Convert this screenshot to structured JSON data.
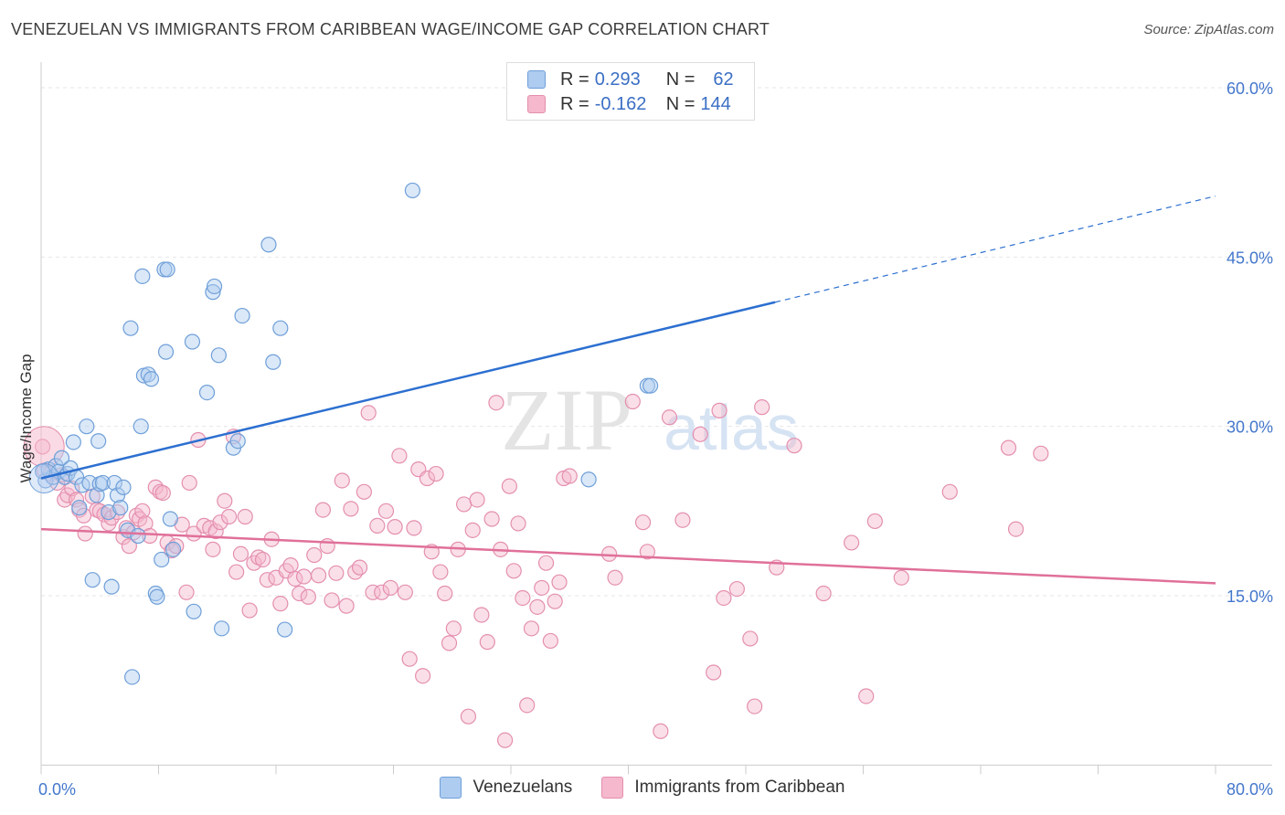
{
  "title": "VENEZUELAN VS IMMIGRANTS FROM CARIBBEAN WAGE/INCOME GAP CORRELATION CHART",
  "source": "Source: ZipAtlas.com",
  "watermark": {
    "zip": "ZIP",
    "atlas": "atlas"
  },
  "legend": {
    "r_label": "R =",
    "n_label": "N =",
    "rows": [
      {
        "r": "0.293",
        "n": "62"
      },
      {
        "r": "-0.162",
        "n": "144"
      }
    ]
  },
  "colors": {
    "blue_fill": "#aecbf0",
    "blue_stroke": "#6f9fd8",
    "blue_line": "#2c6fd0",
    "pink_fill": "#f5b8cc",
    "pink_stroke": "#e48fae",
    "pink_line": "#e0709a",
    "axis_text": "#4477cc"
  },
  "chart_data": {
    "type": "scatter",
    "title": "VENEZUELAN VS IMMIGRANTS FROM CARIBBEAN WAGE/INCOME GAP CORRELATION CHART",
    "xlabel": "",
    "ylabel": "Wage/Income Gap",
    "xlim": [
      0,
      80
    ],
    "ylim": [
      0,
      62
    ],
    "x_tick_labels": [
      "0.0%",
      "80.0%"
    ],
    "y_ticks": [
      {
        "value": 15,
        "label": "15.0%"
      },
      {
        "value": 30,
        "label": "30.0%"
      },
      {
        "value": 45,
        "label": "45.0%"
      },
      {
        "value": 60,
        "label": "60.0%"
      }
    ],
    "grid": true,
    "legend_position": "top-center",
    "series": [
      {
        "name": "Venezuelans",
        "color": "#aecbf0",
        "trendline": {
          "x": [
            0,
            50
          ],
          "y": [
            25.4,
            41.0
          ],
          "dashed_to": [
            80,
            50.4
          ]
        },
        "points": [
          [
            0.3,
            25.2
          ],
          [
            0.5,
            26.2
          ],
          [
            0.8,
            25.5
          ],
          [
            1.0,
            26.5
          ],
          [
            1.2,
            26.0
          ],
          [
            1.4,
            27.2
          ],
          [
            1.6,
            25.5
          ],
          [
            1.8,
            25.8
          ],
          [
            2.0,
            26.3
          ],
          [
            2.2,
            28.6
          ],
          [
            2.4,
            25.5
          ],
          [
            2.6,
            22.8
          ],
          [
            2.8,
            24.8
          ],
          [
            3.1,
            30.0
          ],
          [
            3.3,
            25.0
          ],
          [
            3.5,
            16.4
          ],
          [
            3.8,
            23.9
          ],
          [
            3.9,
            28.7
          ],
          [
            4.0,
            24.9
          ],
          [
            4.2,
            25.0
          ],
          [
            4.6,
            22.4
          ],
          [
            4.8,
            15.8
          ],
          [
            5.0,
            25.0
          ],
          [
            5.2,
            23.9
          ],
          [
            5.4,
            22.8
          ],
          [
            5.6,
            24.6
          ],
          [
            5.9,
            20.8
          ],
          [
            6.1,
            38.7
          ],
          [
            6.2,
            7.8
          ],
          [
            6.6,
            20.3
          ],
          [
            6.8,
            30.0
          ],
          [
            6.9,
            43.3
          ],
          [
            7.0,
            34.5
          ],
          [
            7.3,
            34.6
          ],
          [
            7.5,
            34.2
          ],
          [
            7.8,
            15.2
          ],
          [
            7.9,
            14.9
          ],
          [
            8.2,
            18.2
          ],
          [
            8.4,
            43.9
          ],
          [
            8.5,
            36.6
          ],
          [
            8.6,
            43.9
          ],
          [
            8.8,
            21.8
          ],
          [
            9.0,
            19.1
          ],
          [
            10.3,
            37.5
          ],
          [
            10.4,
            13.6
          ],
          [
            11.3,
            33.0
          ],
          [
            11.7,
            41.9
          ],
          [
            11.8,
            42.4
          ],
          [
            12.1,
            36.3
          ],
          [
            12.3,
            12.1
          ],
          [
            13.1,
            28.1
          ],
          [
            13.4,
            28.7
          ],
          [
            13.7,
            39.8
          ],
          [
            15.5,
            46.1
          ],
          [
            15.8,
            35.7
          ],
          [
            16.3,
            38.7
          ],
          [
            16.6,
            12.0
          ],
          [
            25.3,
            50.9
          ],
          [
            37.3,
            25.3
          ],
          [
            41.3,
            33.6
          ],
          [
            41.5,
            33.6
          ],
          [
            0.1,
            26.0
          ]
        ]
      },
      {
        "name": "Immigrants from Caribbean",
        "color": "#f5b8cc",
        "trendline": {
          "x": [
            0,
            80
          ],
          "y": [
            20.9,
            16.1
          ]
        },
        "points": [
          [
            0.1,
            28.2
          ],
          [
            0.6,
            25.8
          ],
          [
            1.1,
            25.0
          ],
          [
            1.4,
            25.7
          ],
          [
            1.6,
            23.5
          ],
          [
            1.8,
            23.9
          ],
          [
            2.1,
            24.5
          ],
          [
            2.4,
            23.5
          ],
          [
            2.6,
            22.6
          ],
          [
            2.9,
            22.1
          ],
          [
            3.0,
            20.5
          ],
          [
            3.5,
            23.8
          ],
          [
            3.8,
            22.6
          ],
          [
            4.0,
            22.5
          ],
          [
            4.3,
            22.2
          ],
          [
            4.6,
            21.4
          ],
          [
            4.8,
            21.9
          ],
          [
            5.2,
            22.4
          ],
          [
            5.6,
            20.2
          ],
          [
            5.8,
            21.0
          ],
          [
            6.0,
            19.4
          ],
          [
            6.3,
            20.6
          ],
          [
            6.5,
            22.1
          ],
          [
            6.7,
            21.8
          ],
          [
            6.9,
            22.5
          ],
          [
            7.1,
            21.4
          ],
          [
            7.4,
            20.3
          ],
          [
            7.8,
            24.6
          ],
          [
            8.1,
            24.2
          ],
          [
            8.3,
            24.1
          ],
          [
            8.6,
            19.7
          ],
          [
            8.9,
            19.0
          ],
          [
            9.2,
            19.4
          ],
          [
            9.6,
            21.3
          ],
          [
            9.9,
            15.3
          ],
          [
            10.1,
            25.0
          ],
          [
            10.4,
            20.5
          ],
          [
            10.7,
            28.8
          ],
          [
            11.1,
            21.2
          ],
          [
            11.5,
            21.0
          ],
          [
            11.7,
            19.1
          ],
          [
            11.9,
            20.7
          ],
          [
            12.2,
            21.5
          ],
          [
            12.5,
            23.4
          ],
          [
            12.8,
            22.0
          ],
          [
            13.1,
            29.1
          ],
          [
            13.3,
            17.1
          ],
          [
            13.6,
            18.7
          ],
          [
            13.9,
            22.0
          ],
          [
            14.2,
            13.7
          ],
          [
            14.5,
            17.9
          ],
          [
            14.8,
            18.4
          ],
          [
            15.1,
            18.2
          ],
          [
            15.4,
            16.4
          ],
          [
            15.7,
            20.0
          ],
          [
            16.0,
            16.6
          ],
          [
            16.3,
            14.3
          ],
          [
            16.7,
            17.2
          ],
          [
            17.0,
            17.7
          ],
          [
            17.3,
            16.5
          ],
          [
            17.6,
            15.2
          ],
          [
            17.9,
            16.7
          ],
          [
            18.2,
            14.9
          ],
          [
            18.6,
            18.6
          ],
          [
            18.9,
            16.8
          ],
          [
            19.2,
            22.6
          ],
          [
            19.5,
            19.4
          ],
          [
            19.8,
            14.6
          ],
          [
            20.1,
            17.0
          ],
          [
            20.5,
            25.2
          ],
          [
            20.8,
            14.1
          ],
          [
            21.1,
            22.7
          ],
          [
            21.4,
            17.1
          ],
          [
            21.7,
            17.5
          ],
          [
            22.0,
            24.2
          ],
          [
            22.3,
            31.2
          ],
          [
            22.6,
            15.3
          ],
          [
            22.9,
            21.2
          ],
          [
            23.2,
            15.3
          ],
          [
            23.5,
            22.5
          ],
          [
            23.8,
            15.7
          ],
          [
            24.1,
            21.1
          ],
          [
            24.4,
            27.4
          ],
          [
            24.8,
            15.3
          ],
          [
            25.1,
            9.4
          ],
          [
            25.4,
            21.0
          ],
          [
            25.7,
            26.2
          ],
          [
            26.0,
            7.9
          ],
          [
            26.3,
            25.4
          ],
          [
            26.6,
            18.9
          ],
          [
            26.9,
            25.8
          ],
          [
            27.2,
            17.1
          ],
          [
            27.5,
            15.2
          ],
          [
            27.8,
            10.8
          ],
          [
            28.1,
            12.1
          ],
          [
            28.4,
            19.1
          ],
          [
            28.8,
            23.1
          ],
          [
            29.1,
            4.3
          ],
          [
            29.4,
            20.8
          ],
          [
            29.7,
            23.5
          ],
          [
            30.0,
            13.3
          ],
          [
            30.4,
            10.9
          ],
          [
            30.7,
            21.8
          ],
          [
            31.0,
            32.1
          ],
          [
            31.3,
            19.1
          ],
          [
            31.6,
            2.2
          ],
          [
            31.9,
            24.7
          ],
          [
            32.2,
            17.2
          ],
          [
            32.5,
            21.4
          ],
          [
            32.8,
            14.8
          ],
          [
            33.1,
            5.3
          ],
          [
            33.4,
            12.1
          ],
          [
            33.8,
            14.0
          ],
          [
            34.1,
            15.7
          ],
          [
            34.4,
            17.9
          ],
          [
            34.7,
            11.0
          ],
          [
            35.0,
            14.5
          ],
          [
            35.3,
            16.2
          ],
          [
            35.6,
            25.4
          ],
          [
            36.0,
            25.6
          ],
          [
            38.7,
            18.7
          ],
          [
            39.1,
            16.6
          ],
          [
            40.3,
            32.2
          ],
          [
            41.0,
            21.5
          ],
          [
            41.3,
            18.9
          ],
          [
            42.2,
            3.0
          ],
          [
            42.8,
            30.8
          ],
          [
            43.7,
            21.7
          ],
          [
            44.9,
            29.3
          ],
          [
            45.8,
            8.2
          ],
          [
            46.2,
            31.4
          ],
          [
            46.5,
            14.8
          ],
          [
            47.4,
            15.6
          ],
          [
            48.3,
            11.2
          ],
          [
            48.6,
            5.2
          ],
          [
            49.1,
            31.7
          ],
          [
            50.1,
            17.5
          ],
          [
            51.3,
            28.3
          ],
          [
            53.3,
            15.2
          ],
          [
            55.2,
            19.7
          ],
          [
            56.2,
            6.1
          ],
          [
            56.8,
            21.6
          ],
          [
            58.6,
            16.6
          ],
          [
            61.9,
            24.2
          ],
          [
            65.9,
            28.1
          ],
          [
            66.4,
            20.9
          ],
          [
            68.1,
            27.6
          ],
          [
            0.2,
            26.1
          ]
        ]
      }
    ]
  }
}
